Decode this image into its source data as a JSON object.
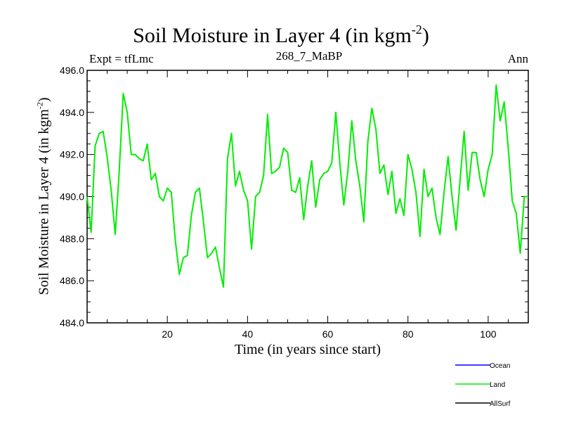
{
  "chart_data": {
    "type": "line",
    "title_main": "Soil Moisture in Layer 4 (in kgm",
    "title_exp": "-2",
    "title_close": ")",
    "expt_label": "Expt = tfLmc",
    "center_label": "268_7_MaBP",
    "season_label": "Ann",
    "xlabel": "Time (in years since start)",
    "ylabel_main": "Soil Moisture in Layer 4 (in kgm",
    "ylabel_exp": "-2",
    "ylabel_close": ")",
    "xlim": [
      0,
      110
    ],
    "ylim": [
      484,
      496
    ],
    "xticks": [
      20,
      40,
      60,
      80,
      100
    ],
    "xtick_labels": [
      "20",
      "40",
      "60",
      "80",
      "100"
    ],
    "yticks": [
      484,
      486,
      488,
      490,
      492,
      494,
      496
    ],
    "ytick_labels": [
      "484.0",
      "486.0",
      "488.0",
      "490.0",
      "492.0",
      "494.0",
      "496.0"
    ],
    "legend": [
      {
        "name": "Ocean",
        "color": "#0000ff"
      },
      {
        "name": "Land",
        "color": "#00ee00"
      },
      {
        "name": "AllSurf",
        "color": "#000000"
      }
    ],
    "series": [
      {
        "name": "Land",
        "color": "#00ee00",
        "x": [
          0,
          1,
          2,
          3,
          4,
          5,
          6,
          7,
          8,
          9,
          10,
          11,
          12,
          13,
          14,
          15,
          16,
          17,
          18,
          19,
          20,
          21,
          22,
          23,
          24,
          25,
          26,
          27,
          28,
          29,
          30,
          31,
          32,
          33,
          34,
          35,
          36,
          37,
          38,
          39,
          40,
          41,
          42,
          43,
          44,
          45,
          46,
          47,
          48,
          49,
          50,
          51,
          52,
          53,
          54,
          55,
          56,
          57,
          58,
          59,
          60,
          61,
          62,
          63,
          64,
          65,
          66,
          67,
          68,
          69,
          70,
          71,
          72,
          73,
          74,
          75,
          76,
          77,
          78,
          79,
          80,
          81,
          82,
          83,
          84,
          85,
          86,
          87,
          88,
          89,
          90,
          91,
          92,
          93,
          94,
          95,
          96,
          97,
          98,
          99,
          100,
          101,
          102,
          103,
          104,
          105,
          106,
          107,
          108,
          109,
          110
        ],
        "values": [
          490.0,
          488.3,
          492.4,
          493.0,
          493.1,
          491.9,
          490.3,
          488.2,
          491.2,
          494.9,
          494.0,
          492.0,
          492.0,
          491.8,
          491.7,
          492.5,
          490.8,
          491.1,
          490.0,
          489.8,
          490.4,
          490.2,
          487.9,
          486.3,
          487.1,
          487.2,
          489.1,
          490.2,
          490.4,
          488.8,
          487.1,
          487.3,
          487.6,
          486.6,
          485.7,
          491.8,
          493.0,
          490.5,
          491.2,
          490.3,
          489.8,
          487.5,
          490.0,
          490.2,
          491.0,
          493.9,
          491.1,
          491.2,
          491.4,
          492.3,
          492.1,
          490.3,
          490.2,
          490.9,
          488.9,
          490.5,
          491.7,
          489.5,
          490.8,
          491.1,
          491.2,
          491.6,
          494.0,
          491.6,
          489.6,
          491.2,
          493.6,
          491.7,
          490.5,
          488.8,
          492.6,
          494.2,
          493.2,
          491.1,
          491.5,
          490.1,
          491.2,
          489.2,
          489.9,
          489.1,
          492.0,
          491.3,
          490.2,
          488.1,
          491.3,
          490.0,
          490.4,
          489.0,
          488.2,
          490.2,
          491.9,
          490.0,
          488.4,
          490.8,
          493.1,
          490.3,
          492.1,
          492.1,
          490.8,
          490.0,
          491.3,
          492.0,
          495.3,
          493.6,
          494.5,
          492.3,
          489.8,
          489.2,
          487.3,
          490.0,
          490.0
        ]
      }
    ]
  }
}
